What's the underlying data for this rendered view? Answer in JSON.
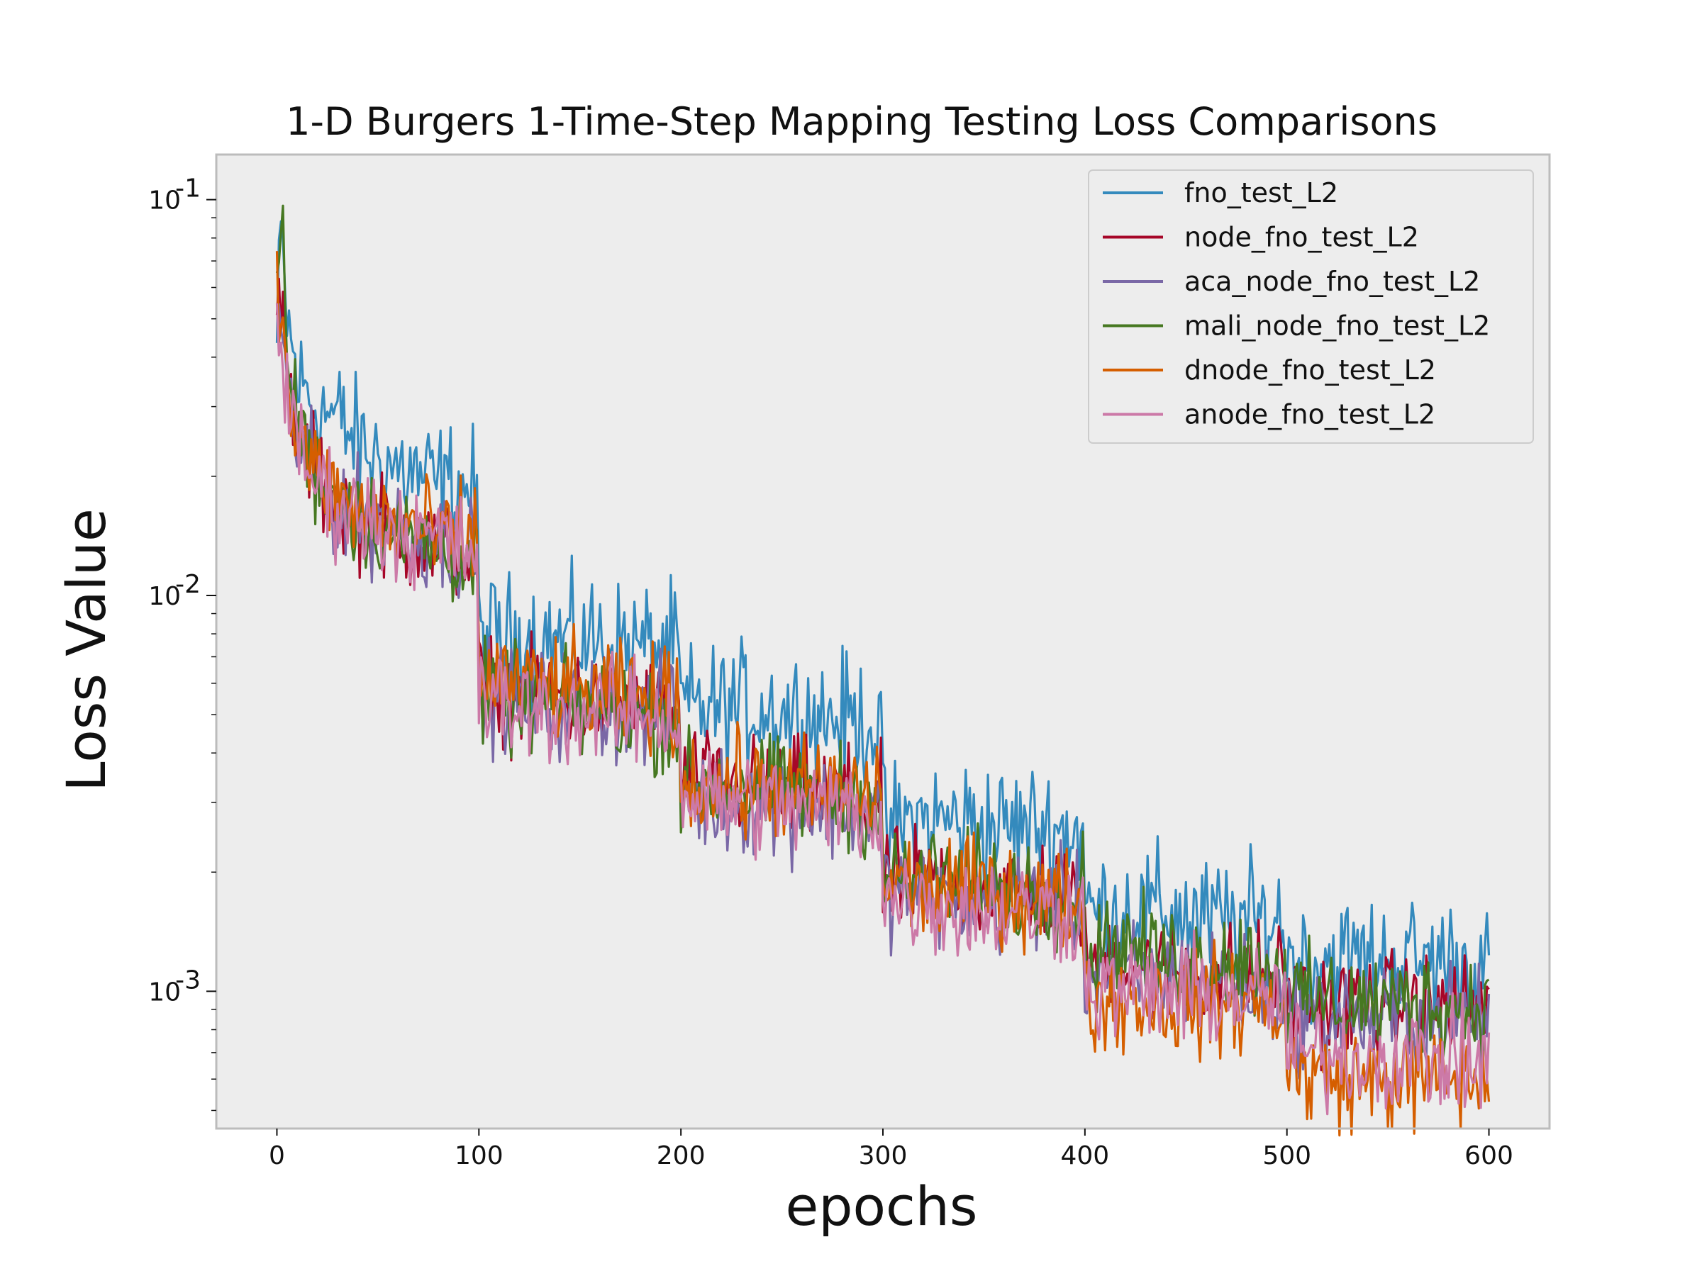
{
  "chart_data": {
    "type": "line",
    "title": "1-D Burgers 1-Time-Step Mapping Testing Loss Comparisons",
    "xlabel": "epochs",
    "ylabel": "Loss Value",
    "xlim": [
      -30,
      630
    ],
    "ylim": [
      0.00045,
      0.13
    ],
    "yscale": "log",
    "xticks": [
      0,
      100,
      200,
      300,
      400,
      500,
      600
    ],
    "xtick_labels": [
      "0",
      "100",
      "200",
      "300",
      "400",
      "500",
      "600"
    ],
    "yticks": [
      0.1,
      0.01,
      0.001
    ],
    "ytick_bases": [
      "10",
      "10",
      "10"
    ],
    "ytick_exponents": [
      "-1",
      "-2",
      "-3"
    ],
    "grid": false,
    "legend_position": "top-right",
    "background_color": "#ededed",
    "frame_color": "#bcbcbc",
    "series": [
      {
        "name": "fno_test_L2",
        "color": "#348abd",
        "x": [
          0,
          2,
          5,
          10,
          20,
          30,
          40,
          50,
          60,
          70,
          80,
          90,
          99,
          100,
          105,
          120,
          140,
          160,
          180,
          199,
          200,
          205,
          220,
          240,
          260,
          280,
          299,
          300,
          305,
          320,
          340,
          360,
          380,
          399,
          400,
          405,
          420,
          440,
          460,
          480,
          499,
          500,
          505,
          520,
          540,
          560,
          580,
          600
        ],
        "y": [
          0.042,
          0.08,
          0.05,
          0.035,
          0.03,
          0.028,
          0.024,
          0.022,
          0.021,
          0.02,
          0.019,
          0.019,
          0.018,
          0.008,
          0.0078,
          0.0078,
          0.0077,
          0.0077,
          0.0074,
          0.0072,
          0.0052,
          0.0052,
          0.0052,
          0.0052,
          0.005,
          0.0049,
          0.0047,
          0.0026,
          0.0026,
          0.0027,
          0.0027,
          0.0026,
          0.0026,
          0.0025,
          0.0016,
          0.0016,
          0.0016,
          0.0016,
          0.0015,
          0.0015,
          0.0015,
          0.0012,
          0.0012,
          0.0012,
          0.0012,
          0.0012,
          0.0012,
          0.0011
        ]
      },
      {
        "name": "node_fno_test_L2",
        "color": "#a60628",
        "x": [
          0,
          2,
          5,
          10,
          20,
          30,
          40,
          50,
          60,
          70,
          80,
          90,
          99,
          100,
          105,
          120,
          140,
          160,
          180,
          199,
          200,
          205,
          220,
          240,
          260,
          280,
          299,
          300,
          305,
          320,
          340,
          360,
          380,
          399,
          400,
          405,
          420,
          440,
          460,
          480,
          499,
          500,
          505,
          520,
          540,
          560,
          580,
          600
        ],
        "y": [
          0.06,
          0.05,
          0.035,
          0.025,
          0.02,
          0.017,
          0.016,
          0.015,
          0.014,
          0.014,
          0.013,
          0.013,
          0.012,
          0.006,
          0.0058,
          0.0055,
          0.0055,
          0.0053,
          0.0052,
          0.005,
          0.0035,
          0.0034,
          0.0033,
          0.0032,
          0.0032,
          0.0031,
          0.003,
          0.0019,
          0.0019,
          0.0019,
          0.0018,
          0.0018,
          0.0018,
          0.0017,
          0.0012,
          0.0012,
          0.0012,
          0.0011,
          0.0011,
          0.0011,
          0.0011,
          0.00093,
          0.00093,
          0.00092,
          0.00092,
          0.00092,
          0.00091,
          0.0009
        ]
      },
      {
        "name": "aca_node_fno_test_L2",
        "color": "#7a68a6",
        "x": [
          0,
          2,
          5,
          10,
          20,
          30,
          40,
          50,
          60,
          70,
          80,
          90,
          99,
          100,
          105,
          120,
          140,
          160,
          180,
          199,
          200,
          205,
          220,
          240,
          260,
          280,
          299,
          300,
          305,
          320,
          340,
          360,
          380,
          399,
          400,
          405,
          420,
          440,
          460,
          480,
          499,
          500,
          505,
          520,
          540,
          560,
          580,
          600
        ],
        "y": [
          0.065,
          0.045,
          0.032,
          0.025,
          0.019,
          0.017,
          0.016,
          0.015,
          0.015,
          0.014,
          0.014,
          0.013,
          0.013,
          0.0058,
          0.0056,
          0.0054,
          0.0053,
          0.0052,
          0.0051,
          0.005,
          0.0032,
          0.0031,
          0.003,
          0.003,
          0.0029,
          0.0029,
          0.0028,
          0.0018,
          0.0018,
          0.0018,
          0.0017,
          0.0017,
          0.0017,
          0.0016,
          0.0011,
          0.0011,
          0.0011,
          0.0011,
          0.0011,
          0.001,
          0.001,
          0.00088,
          0.00088,
          0.00087,
          0.00086,
          0.00086,
          0.00085,
          0.00084
        ]
      },
      {
        "name": "mali_node_fno_test_L2",
        "color": "#467821",
        "x": [
          0,
          2,
          5,
          10,
          20,
          30,
          40,
          50,
          60,
          70,
          80,
          90,
          99,
          100,
          105,
          120,
          140,
          160,
          180,
          199,
          200,
          205,
          220,
          240,
          260,
          280,
          299,
          300,
          305,
          320,
          340,
          360,
          380,
          399,
          400,
          405,
          420,
          440,
          460,
          480,
          499,
          500,
          505,
          520,
          540,
          560,
          580,
          600
        ],
        "y": [
          0.065,
          0.1,
          0.04,
          0.028,
          0.02,
          0.018,
          0.016,
          0.015,
          0.014,
          0.014,
          0.013,
          0.013,
          0.012,
          0.0055,
          0.0055,
          0.0054,
          0.0053,
          0.0052,
          0.005,
          0.0048,
          0.0033,
          0.0033,
          0.0033,
          0.0032,
          0.0032,
          0.0031,
          0.003,
          0.0019,
          0.0019,
          0.0019,
          0.0019,
          0.0018,
          0.0018,
          0.0018,
          0.0013,
          0.0013,
          0.0013,
          0.0012,
          0.0012,
          0.0012,
          0.0011,
          0.00095,
          0.00095,
          0.00094,
          0.00093,
          0.00093,
          0.00092,
          0.00092
        ]
      },
      {
        "name": "dnode_fno_test_L2",
        "color": "#d55e00",
        "x": [
          0,
          2,
          5,
          10,
          20,
          30,
          40,
          50,
          60,
          70,
          80,
          90,
          99,
          100,
          105,
          120,
          140,
          160,
          180,
          199,
          200,
          205,
          220,
          240,
          260,
          280,
          299,
          300,
          305,
          320,
          340,
          360,
          380,
          399,
          400,
          405,
          420,
          440,
          460,
          480,
          499,
          500,
          505,
          520,
          540,
          560,
          580,
          600
        ],
        "y": [
          0.06,
          0.05,
          0.035,
          0.025,
          0.02,
          0.018,
          0.016,
          0.016,
          0.015,
          0.015,
          0.014,
          0.014,
          0.014,
          0.0062,
          0.0062,
          0.006,
          0.0058,
          0.0056,
          0.0055,
          0.0054,
          0.0034,
          0.0034,
          0.0033,
          0.0033,
          0.0032,
          0.0032,
          0.0031,
          0.0019,
          0.0019,
          0.0018,
          0.0018,
          0.0018,
          0.0017,
          0.0017,
          0.00095,
          0.00095,
          0.00095,
          0.00094,
          0.00093,
          0.00093,
          0.00092,
          0.00062,
          0.00062,
          0.00061,
          0.0006,
          0.0006,
          0.0006,
          0.00059
        ]
      },
      {
        "name": "anode_fno_test_L2",
        "color": "#cc79a7",
        "x": [
          0,
          2,
          5,
          10,
          20,
          30,
          40,
          50,
          60,
          70,
          80,
          90,
          99,
          100,
          105,
          120,
          140,
          160,
          180,
          199,
          200,
          205,
          220,
          240,
          260,
          280,
          299,
          300,
          305,
          320,
          340,
          360,
          380,
          399,
          400,
          405,
          420,
          440,
          460,
          480,
          499,
          500,
          505,
          520,
          540,
          560,
          580,
          600
        ],
        "y": [
          0.062,
          0.04,
          0.03,
          0.024,
          0.019,
          0.017,
          0.016,
          0.015,
          0.015,
          0.014,
          0.014,
          0.013,
          0.013,
          0.0055,
          0.0054,
          0.0052,
          0.0051,
          0.005,
          0.005,
          0.0049,
          0.0031,
          0.0031,
          0.003,
          0.003,
          0.0029,
          0.0029,
          0.0028,
          0.0017,
          0.0017,
          0.0017,
          0.0016,
          0.0016,
          0.0016,
          0.0016,
          0.001,
          0.001,
          0.001,
          0.00098,
          0.00097,
          0.00096,
          0.00095,
          0.0007,
          0.0007,
          0.00069,
          0.00068,
          0.00068,
          0.00067,
          0.00066
        ]
      }
    ]
  }
}
